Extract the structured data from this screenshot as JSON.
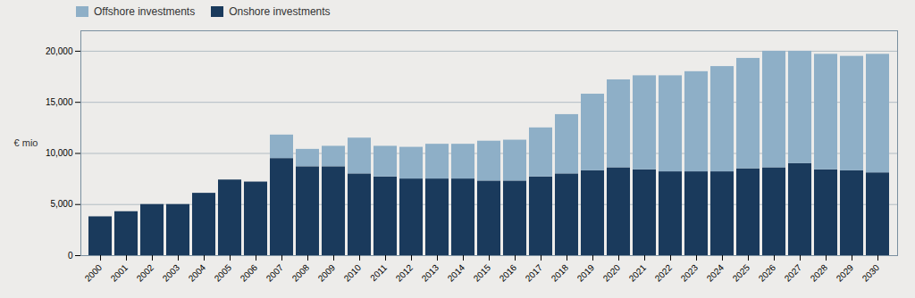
{
  "chart_data": {
    "type": "bar",
    "stacked": true,
    "ylabel": "€ mio",
    "categories": [
      "2000",
      "2001",
      "2002",
      "2003",
      "2004",
      "2005",
      "2006",
      "2007",
      "2008",
      "2009",
      "2010",
      "2011",
      "2012",
      "2013",
      "2014",
      "2015",
      "2016",
      "2017",
      "2018",
      "2019",
      "2020",
      "2021",
      "2022",
      "2023",
      "2024",
      "2025",
      "2026",
      "2027",
      "2028",
      "2029",
      "2030"
    ],
    "series": [
      {
        "name": "Onshore investments",
        "color": "#1a3a5c",
        "values": [
          3800,
          4300,
          5000,
          5000,
          6100,
          7400,
          7200,
          9500,
          8700,
          8700,
          8000,
          7700,
          7500,
          7500,
          7500,
          7300,
          7300,
          7700,
          8000,
          8300,
          8600,
          8400,
          8200,
          8200,
          8200,
          8500,
          8600,
          9000,
          8400,
          8300,
          8100
        ]
      },
      {
        "name": "Offshore investments",
        "color": "#8eafc7",
        "values": [
          0,
          0,
          0,
          0,
          0,
          0,
          0,
          2300,
          1700,
          2000,
          3500,
          3000,
          3100,
          3400,
          3400,
          3900,
          4000,
          4800,
          5800,
          7500,
          8600,
          9200,
          9400,
          9800,
          10300,
          10800,
          11400,
          11000,
          11300,
          11200,
          11600
        ]
      }
    ],
    "ylim": [
      0,
      22000
    ],
    "yticks": [
      0,
      {
        "value": 5000,
        "label": "5,000"
      },
      {
        "value": 10000,
        "label": "10,000"
      },
      {
        "value": 15000,
        "label": "15,000"
      },
      {
        "value": 20000,
        "label": "20,000"
      }
    ],
    "grid": true,
    "legend": "upper left"
  }
}
